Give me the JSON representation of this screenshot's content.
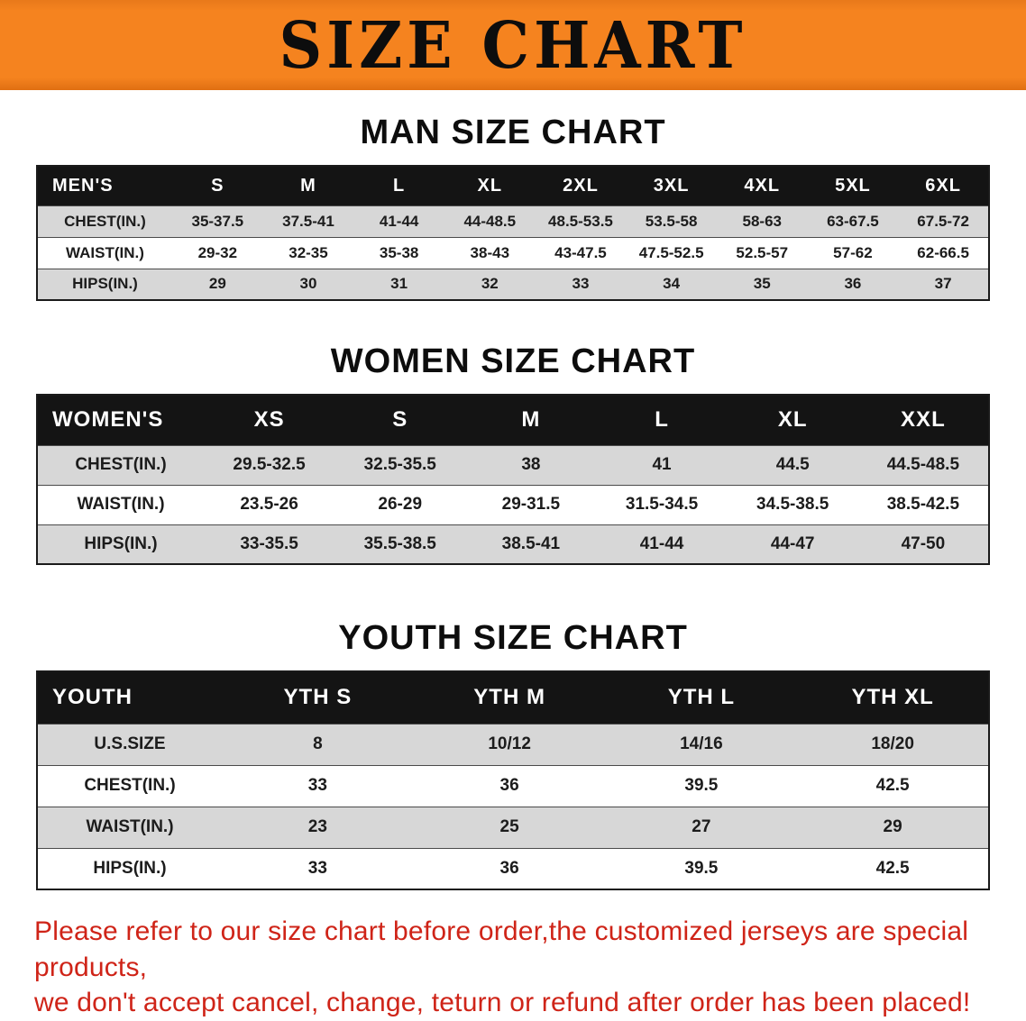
{
  "banner": {
    "title": "SIZE CHART"
  },
  "sections": [
    {
      "heading": "MAN SIZE CHART",
      "table": {
        "columns": [
          "MEN'S",
          "S",
          "M",
          "L",
          "XL",
          "2XL",
          "3XL",
          "4XL",
          "5XL",
          "6XL"
        ],
        "rows": [
          {
            "label": "CHEST(IN.)",
            "values": [
              "35-37.5",
              "37.5-41",
              "41-44",
              "44-48.5",
              "48.5-53.5",
              "53.5-58",
              "58-63",
              "63-67.5",
              "67.5-72"
            ]
          },
          {
            "label": "WAIST(IN.)",
            "values": [
              "29-32",
              "32-35",
              "35-38",
              "38-43",
              "43-47.5",
              "47.5-52.5",
              "52.5-57",
              "57-62",
              "62-66.5"
            ]
          },
          {
            "label": "HIPS(IN.)",
            "values": [
              "29",
              "30",
              "31",
              "32",
              "33",
              "34",
              "35",
              "36",
              "37"
            ]
          }
        ]
      }
    },
    {
      "heading": "WOMEN SIZE CHART",
      "table": {
        "columns": [
          "WOMEN'S",
          "XS",
          "S",
          "M",
          "L",
          "XL",
          "XXL"
        ],
        "rows": [
          {
            "label": "CHEST(IN.)",
            "values": [
              "29.5-32.5",
              "32.5-35.5",
              "38",
              "41",
              "44.5",
              "44.5-48.5"
            ]
          },
          {
            "label": "WAIST(IN.)",
            "values": [
              "23.5-26",
              "26-29",
              "29-31.5",
              "31.5-34.5",
              "34.5-38.5",
              "38.5-42.5"
            ]
          },
          {
            "label": "HIPS(IN.)",
            "values": [
              "33-35.5",
              "35.5-38.5",
              "38.5-41",
              "41-44",
              "44-47",
              "47-50"
            ]
          }
        ]
      }
    },
    {
      "heading": "YOUTH SIZE CHART",
      "table": {
        "columns": [
          "YOUTH",
          "YTH S",
          "YTH M",
          "YTH L",
          "YTH XL"
        ],
        "rows": [
          {
            "label": "U.S.SIZE",
            "values": [
              "8",
              "10/12",
              "14/16",
              "18/20"
            ]
          },
          {
            "label": "CHEST(IN.)",
            "values": [
              "33",
              "36",
              "39.5",
              "42.5"
            ]
          },
          {
            "label": "WAIST(IN.)",
            "values": [
              "23",
              "25",
              "27",
              "29"
            ]
          },
          {
            "label": "HIPS(IN.)",
            "values": [
              "33",
              "36",
              "39.5",
              "42.5"
            ]
          }
        ]
      }
    }
  ],
  "disclaimer": {
    "line1": "Please refer to our size chart before order,the customized jerseys are special products,",
    "line2": "we don't accept cancel, change, teturn or refund after order has been placed!"
  },
  "colors": {
    "banner_bg": "#f5831f",
    "header_bg": "#141414",
    "row_alt_bg": "#d7d7d7",
    "disclaimer_text": "#cf2418"
  }
}
